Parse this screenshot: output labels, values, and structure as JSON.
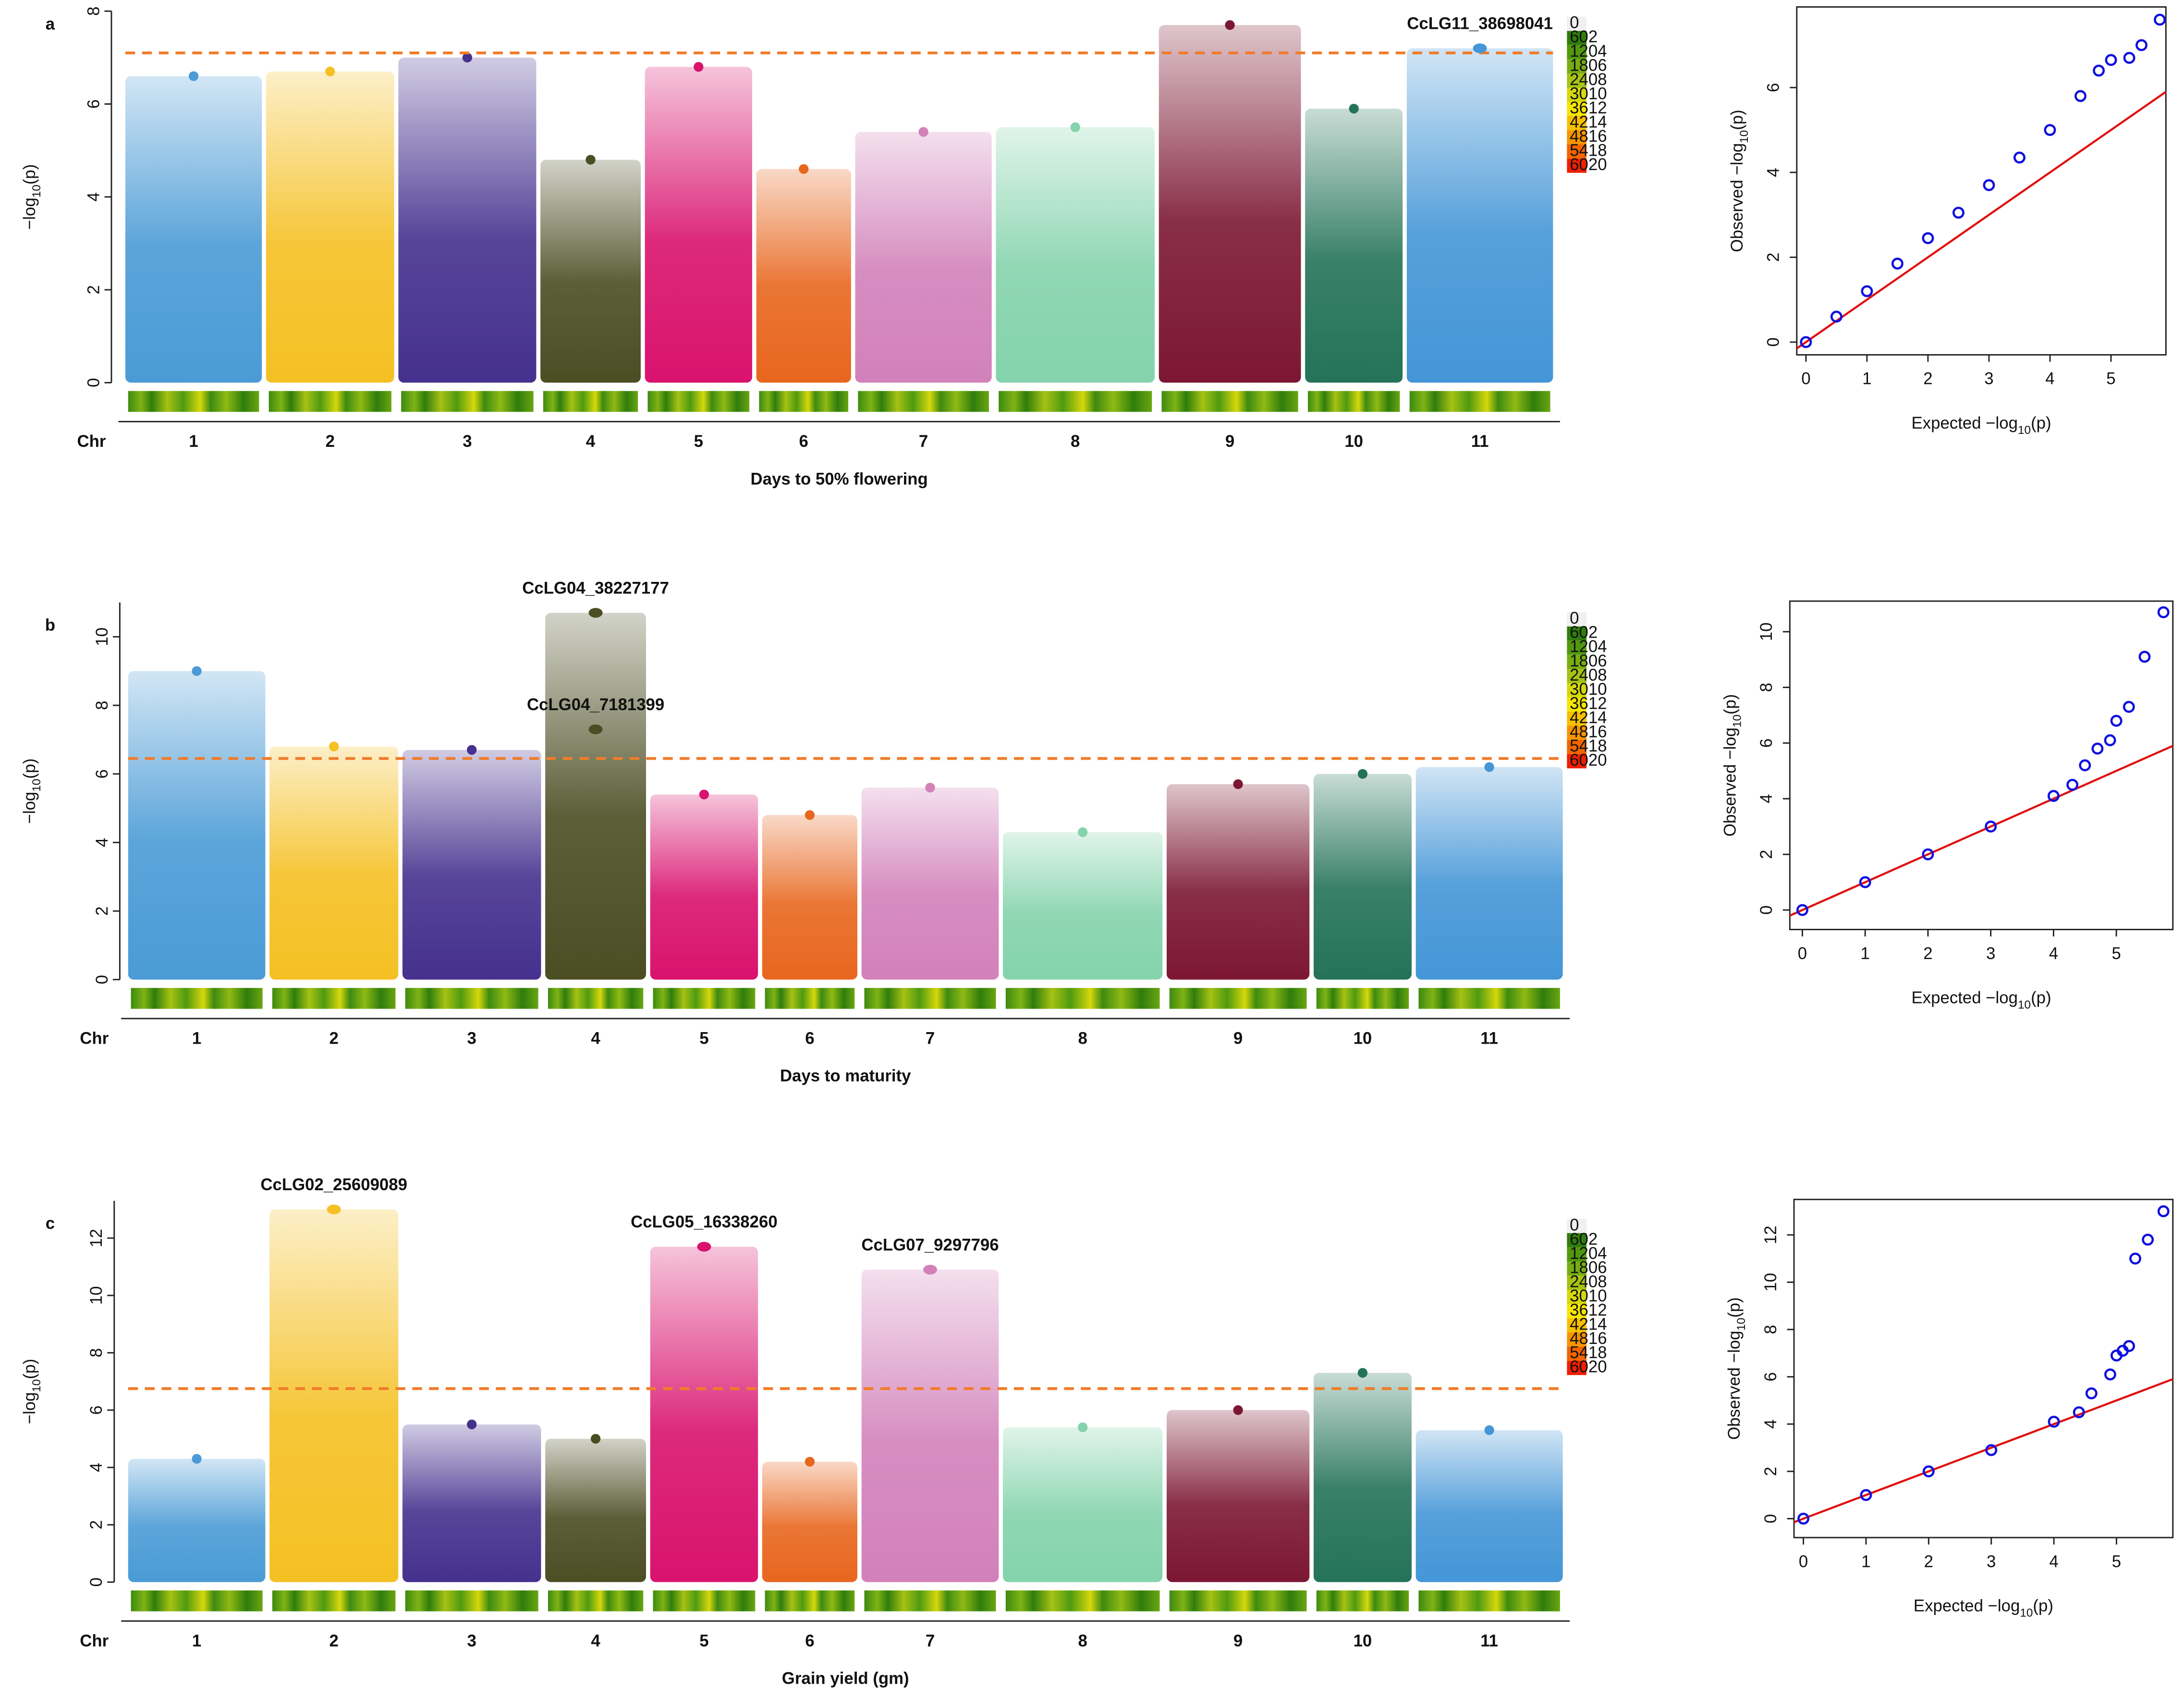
{
  "density_legend": {
    "ticks": [
      0,
      602,
      1204,
      1806,
      2408,
      3010,
      3612,
      4214,
      4816,
      5418,
      6020
    ],
    "colors": [
      "#f0f0f0",
      "#2f7d0c",
      "#52980f",
      "#78ad12",
      "#a6c214",
      "#d6d80c",
      "#f6e600",
      "#f7bf00",
      "#f79400",
      "#f46400",
      "#f01e00"
    ]
  },
  "chart_data": [
    {
      "type": "manhattan",
      "panel_label": "a",
      "title": "Days to 50% flowering",
      "x_label": "Chr",
      "y_label": [
        "−log",
        "10",
        "(p)"
      ],
      "categories": [
        "1",
        "2",
        "3",
        "4",
        "5",
        "6",
        "7",
        "8",
        "9",
        "10",
        "11"
      ],
      "values": [
        6.6,
        6.7,
        7.0,
        4.8,
        6.8,
        4.6,
        5.4,
        5.5,
        7.7,
        5.9,
        7.2
      ],
      "colors": [
        "#4a9bd6",
        "#f5c023",
        "#45318e",
        "#4b4d23",
        "#d9126e",
        "#e8661e",
        "#d281ba",
        "#84d3ac",
        "#7c1733",
        "#247358",
        "#4496d7"
      ],
      "ylim": [
        0,
        8
      ],
      "yticks": [
        0,
        2,
        4,
        6,
        8
      ],
      "threshold": 7.1,
      "annotations": [
        {
          "label": "CcLG11_38698041",
          "category": "11",
          "value": 7.2
        }
      ]
    },
    {
      "type": "qq",
      "x_label": [
        "Expected −log",
        "10",
        "(p)"
      ],
      "y_label": [
        "Observed −log",
        "10",
        "(p)"
      ],
      "x": [
        0,
        0.5,
        1,
        1.5,
        2,
        2.5,
        3,
        3.5,
        4,
        4.5,
        4.8,
        5,
        5.3,
        5.5,
        5.8
      ],
      "y": [
        0,
        0.6,
        1.2,
        1.85,
        2.45,
        3.05,
        3.7,
        4.35,
        5.0,
        5.8,
        6.4,
        6.65,
        6.7,
        7.0,
        7.6
      ],
      "xlim": [
        -0.15,
        5.9
      ],
      "ylim": [
        -0.3,
        7.9
      ],
      "xticks": [
        0,
        1,
        2,
        3,
        4,
        5
      ],
      "yticks": [
        0,
        2,
        4,
        6
      ],
      "color": "#1010e0",
      "line_color": "#e01010"
    },
    {
      "type": "manhattan",
      "panel_label": "b",
      "title": "Days to maturity",
      "x_label": "Chr",
      "y_label": [
        "−log",
        "10",
        "(p)"
      ],
      "categories": [
        "1",
        "2",
        "3",
        "4",
        "5",
        "6",
        "7",
        "8",
        "9",
        "10",
        "11"
      ],
      "values": [
        9.0,
        6.8,
        6.7,
        10.7,
        5.4,
        4.8,
        5.6,
        4.3,
        5.7,
        6.0,
        6.2
      ],
      "colors": [
        "#4a9bd6",
        "#f5c023",
        "#45318e",
        "#4b4d23",
        "#d9126e",
        "#e8661e",
        "#d281ba",
        "#84d3ac",
        "#7c1733",
        "#247358",
        "#4496d7"
      ],
      "ylim": [
        0,
        11
      ],
      "yticks": [
        0,
        2,
        4,
        6,
        8,
        10
      ],
      "threshold": 6.45,
      "annotations": [
        {
          "label": "CcLG04_38227177",
          "category": "4",
          "value": 10.7
        },
        {
          "label": "CcLG04_7181399",
          "category": "4",
          "value": 7.3
        }
      ]
    },
    {
      "type": "qq",
      "x_label": [
        "Expected −log",
        "10",
        "(p)"
      ],
      "y_label": [
        "Observed −log",
        "10",
        "(p)"
      ],
      "x": [
        0,
        1,
        2,
        3,
        4,
        4.3,
        4.5,
        4.7,
        4.9,
        5.0,
        5.2,
        5.45,
        5.75
      ],
      "y": [
        0,
        1,
        2,
        3,
        4.1,
        4.5,
        5.2,
        5.8,
        6.1,
        6.8,
        7.3,
        9.1,
        10.7
      ],
      "xlim": [
        -0.2,
        5.9
      ],
      "ylim": [
        -0.7,
        11.1
      ],
      "xticks": [
        0,
        1,
        2,
        3,
        4,
        5
      ],
      "yticks": [
        0,
        2,
        4,
        6,
        8,
        10
      ],
      "color": "#1010e0",
      "line_color": "#e01010"
    },
    {
      "type": "manhattan",
      "panel_label": "c",
      "title": "Grain yield (gm)",
      "x_label": "Chr",
      "y_label": [
        "−log",
        "10",
        "(p)"
      ],
      "categories": [
        "1",
        "2",
        "3",
        "4",
        "5",
        "6",
        "7",
        "8",
        "9",
        "10",
        "11"
      ],
      "values": [
        4.3,
        13.0,
        5.5,
        5.0,
        11.7,
        4.2,
        10.9,
        5.4,
        6.0,
        7.3,
        5.3
      ],
      "colors": [
        "#4a9bd6",
        "#f5c023",
        "#45318e",
        "#4b4d23",
        "#d9126e",
        "#e8661e",
        "#d281ba",
        "#84d3ac",
        "#7c1733",
        "#247358",
        "#4496d7"
      ],
      "ylim": [
        0,
        13.3
      ],
      "yticks": [
        0,
        2,
        4,
        6,
        8,
        10,
        12
      ],
      "threshold": 6.75,
      "annotations": [
        {
          "label": "CcLG02_25609089",
          "category": "2",
          "value": 13.0
        },
        {
          "label": "CcLG05_16338260",
          "category": "5",
          "value": 11.7
        },
        {
          "label": "CcLG07_9297796",
          "category": "7",
          "value": 10.9
        }
      ]
    },
    {
      "type": "qq",
      "x_label": [
        "Expected −log",
        "10",
        "(p)"
      ],
      "y_label": [
        "Observed −log",
        "10",
        "(p)"
      ],
      "x": [
        0,
        1,
        2,
        3,
        4,
        4.4,
        4.6,
        4.9,
        5.0,
        5.1,
        5.2,
        5.3,
        5.5,
        5.75
      ],
      "y": [
        0,
        1,
        2,
        2.9,
        4.1,
        4.5,
        5.3,
        6.1,
        6.9,
        7.1,
        7.3,
        11.0,
        11.8,
        13.0
      ],
      "xlim": [
        -0.15,
        5.9
      ],
      "ylim": [
        -0.8,
        13.5
      ],
      "xticks": [
        0,
        1,
        2,
        3,
        4,
        5
      ],
      "yticks": [
        0,
        2,
        4,
        6,
        8,
        10,
        12
      ],
      "color": "#1010e0",
      "line_color": "#e01010"
    }
  ]
}
